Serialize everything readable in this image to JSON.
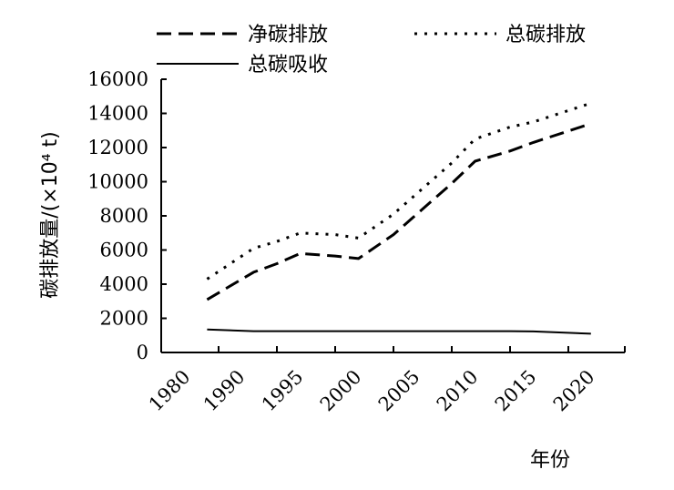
{
  "chart_data": {
    "type": "line",
    "title": "",
    "xlabel": "年份",
    "ylabel": "碳排放量/(×10⁴ t)",
    "x_ticks": [
      "1980",
      "1990",
      "1995",
      "2000",
      "2005",
      "2010",
      "2015",
      "2020"
    ],
    "ylim": [
      0,
      16000
    ],
    "y_ticks": [
      0,
      2000,
      4000,
      6000,
      8000,
      10000,
      12000,
      14000,
      16000
    ],
    "grid": false,
    "legend_position": "top",
    "x": [
      1988,
      1993,
      1995,
      1997,
      2000,
      2002,
      2005,
      2010,
      2012,
      2015,
      2017,
      2022
    ],
    "series": [
      {
        "name": "净碳排放",
        "style": "dashed",
        "color": "#000000",
        "values": [
          3100,
          4700,
          5200,
          5800,
          5650,
          5500,
          6900,
          9900,
          11200,
          11800,
          12300,
          13400
        ]
      },
      {
        "name": "总碳排放",
        "style": "dotted",
        "color": "#000000",
        "values": [
          4300,
          6100,
          6500,
          7000,
          6900,
          6700,
          8100,
          11100,
          12500,
          13200,
          13500,
          14600
        ]
      },
      {
        "name": "总碳吸收",
        "style": "solid",
        "color": "#000000",
        "values": [
          1350,
          1250,
          1250,
          1250,
          1250,
          1250,
          1250,
          1250,
          1250,
          1250,
          1230,
          1100
        ]
      }
    ]
  }
}
